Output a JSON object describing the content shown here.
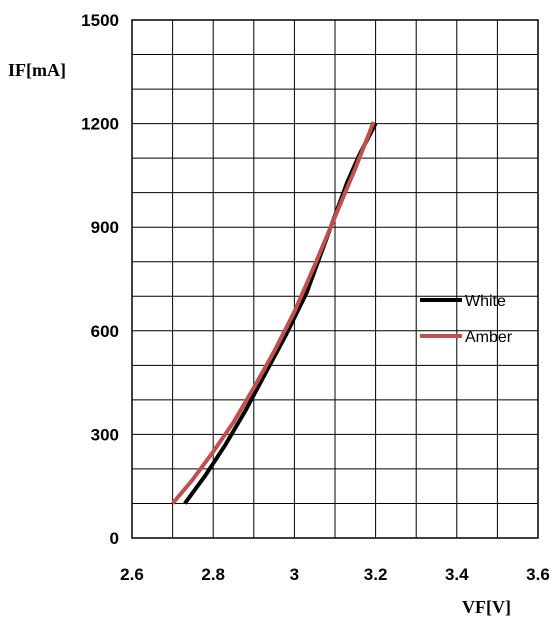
{
  "chart_data": {
    "type": "line",
    "title": "",
    "xlabel": "VF[V]",
    "ylabel": "IF[mA]",
    "xlim": [
      2.6,
      3.6
    ],
    "ylim": [
      0,
      1500
    ],
    "x_ticks": [
      "2.6",
      "2.8",
      "3",
      "3.2",
      "3.4",
      "3.6"
    ],
    "y_ticks": [
      "0",
      "300",
      "600",
      "900",
      "1200",
      "1500"
    ],
    "grid": true,
    "legend_position": "right",
    "series": [
      {
        "name": "White",
        "color": "#000000",
        "x": [
          2.73,
          2.78,
          2.83,
          2.88,
          2.93,
          2.98,
          3.03,
          3.08,
          3.13,
          3.16,
          3.2
        ],
        "y": [
          100,
          180,
          270,
          370,
          480,
          590,
          710,
          870,
          1030,
          1110,
          1200
        ]
      },
      {
        "name": "Amber",
        "color": "#c0504d",
        "x": [
          2.7,
          2.75,
          2.8,
          2.85,
          2.9,
          2.95,
          3.0,
          3.05,
          3.1,
          3.15,
          3.195
        ],
        "y": [
          100,
          170,
          250,
          335,
          435,
          540,
          655,
          790,
          930,
          1070,
          1205
        ]
      }
    ]
  }
}
